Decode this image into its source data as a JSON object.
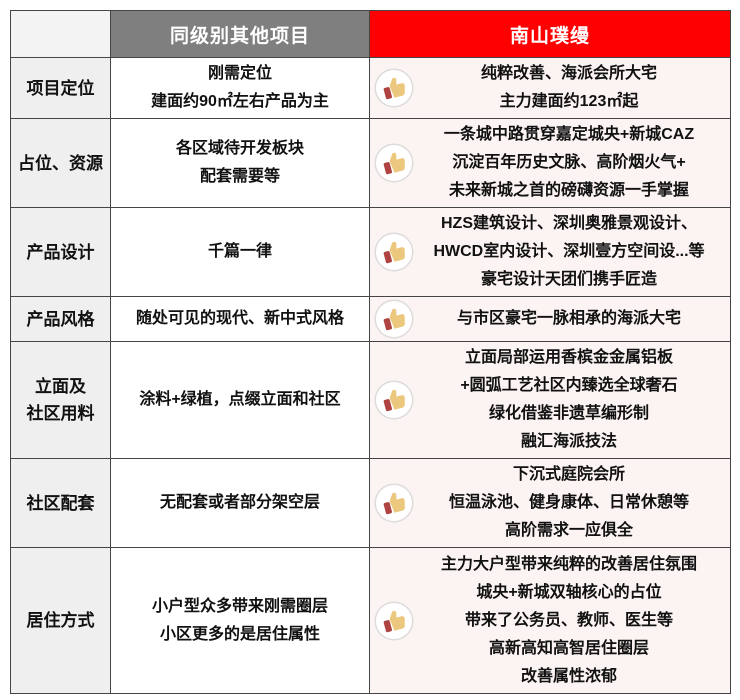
{
  "table": {
    "header": {
      "corner": "",
      "competitor": "同级别其他项目",
      "project": "南山璞缦"
    },
    "rows": [
      {
        "label_lines": [
          "项目定位"
        ],
        "competitor_lines": [
          "刚需定位",
          "建面约90㎡左右产品为主"
        ],
        "project_lines": [
          "纯粹改善、海派会所大宅",
          "主力建面约123㎡起"
        ]
      },
      {
        "label_lines": [
          "占位、资源"
        ],
        "competitor_lines": [
          "各区域待开发板块",
          "配套需要等"
        ],
        "project_lines": [
          "一条城中路贯穿嘉定城央+新城CAZ",
          "沉淀百年历史文脉、高阶烟火气+",
          "未来新城之首的磅礴资源一手掌握"
        ]
      },
      {
        "label_lines": [
          "产品设计"
        ],
        "competitor_lines": [
          "千篇一律"
        ],
        "project_lines": [
          "HZS建筑设计、深圳奥雅景观设计、",
          "HWCD室内设计、深圳壹方空间设...等",
          "豪宅设计天团们携手匠造"
        ]
      },
      {
        "label_lines": [
          "产品风格"
        ],
        "competitor_lines": [
          "随处可见的现代、新中式风格"
        ],
        "project_lines": [
          "与市区豪宅一脉相承的海派大宅"
        ]
      },
      {
        "label_lines": [
          "立面及",
          "社区用料"
        ],
        "competitor_lines": [
          "涂料+绿植，点缀立面和社区"
        ],
        "project_lines": [
          "立面局部运用香槟金金属铝板",
          "+圆弧工艺社区内臻选全球奢石",
          "绿化借鉴非遗草编形制",
          "融汇海派技法"
        ]
      },
      {
        "label_lines": [
          "社区配套"
        ],
        "competitor_lines": [
          "无配套或者部分架空层"
        ],
        "project_lines": [
          "下沉式庭院会所",
          "恒温泳池、健身康体、日常休憩等",
          "高阶需求一应俱全"
        ]
      },
      {
        "label_lines": [
          "居住方式"
        ],
        "competitor_lines": [
          "小户型众多带来刚需圈层",
          "小区更多的是居住属性"
        ],
        "project_lines": [
          "主力大户型带来纯粹的改善居住氛围",
          "城央+新城双轴核心的占位",
          "带来了公务员、教师、医生等",
          "高新高知高智居住圈层",
          "改善属性浓郁"
        ]
      }
    ]
  },
  "icons": {
    "project_badge": "thumbs-up-icon"
  },
  "colors": {
    "brand_red": "#fe0000",
    "header_gray": "#7f7f7f",
    "label_bg": "#efefef",
    "highlight_bg": "#fcf4f3",
    "thumb_gold": "#ecc87f",
    "thumb_cuff_red": "#ae4341"
  }
}
